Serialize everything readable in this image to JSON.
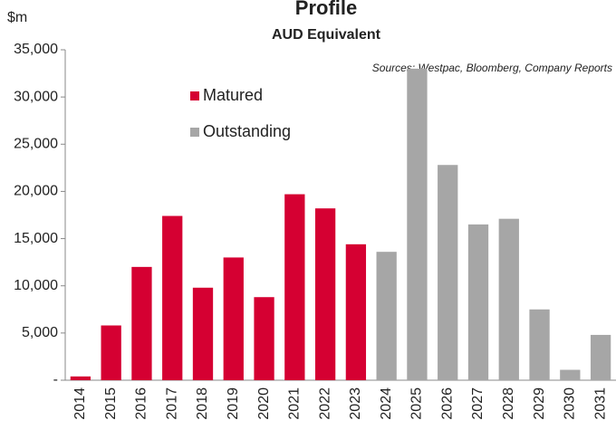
{
  "chart_data": {
    "type": "bar",
    "title": "Profile",
    "subtitle": "AUD Equivalent",
    "y_label": "$m",
    "annotation": "Sources: Westpac, Bloomberg, Company Reports",
    "categories": [
      "2014",
      "2015",
      "2016",
      "2017",
      "2018",
      "2019",
      "2020",
      "2021",
      "2022",
      "2023",
      "2024",
      "2025",
      "2026",
      "2027",
      "2028",
      "2029",
      "2030",
      "2031"
    ],
    "series": [
      {
        "name": "Matured",
        "color": "#d50032",
        "values": [
          400,
          5800,
          12000,
          17400,
          9800,
          13000,
          8800,
          19700,
          18200,
          14400,
          null,
          null,
          null,
          null,
          null,
          null,
          null,
          null
        ]
      },
      {
        "name": "Outstanding",
        "color": "#a6a6a6",
        "values": [
          null,
          null,
          null,
          null,
          null,
          null,
          null,
          null,
          null,
          null,
          13600,
          33000,
          22800,
          16500,
          17100,
          7500,
          1100,
          4800
        ]
      }
    ],
    "ylim": [
      0,
      35000
    ],
    "yticks": [
      {
        "value": 0,
        "label": "-"
      },
      {
        "value": 5000,
        "label": "5,000"
      },
      {
        "value": 10000,
        "label": "10,000"
      },
      {
        "value": 15000,
        "label": "15,000"
      },
      {
        "value": 20000,
        "label": "20,000"
      },
      {
        "value": 25000,
        "label": "25,000"
      },
      {
        "value": 30000,
        "label": "30,000"
      },
      {
        "value": 35000,
        "label": "35,000"
      }
    ],
    "grid": false
  }
}
